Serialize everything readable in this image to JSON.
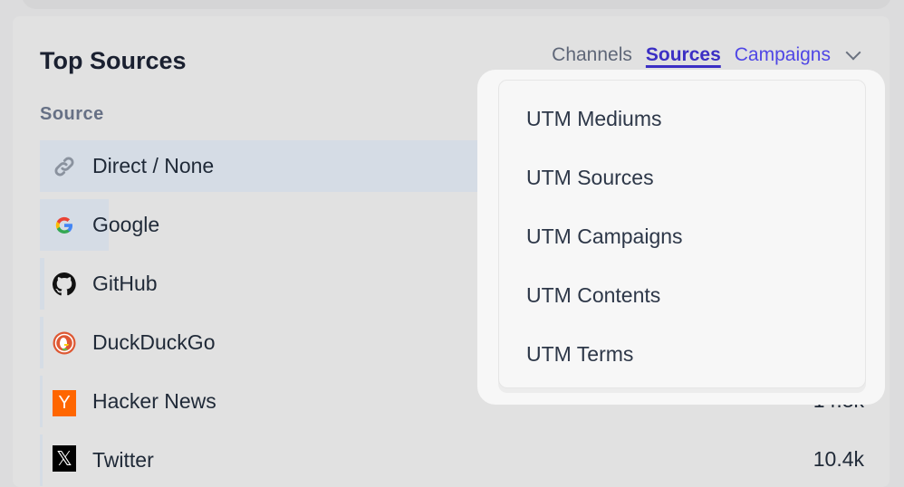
{
  "card": {
    "title": "Top Sources",
    "column_header": "Source"
  },
  "tabs": [
    {
      "label": "Channels",
      "active": false
    },
    {
      "label": "Sources",
      "active": true
    },
    {
      "label": "Campaigns",
      "active": false
    }
  ],
  "rows": [
    {
      "label": "Direct / None",
      "icon": "link-icon",
      "value": null
    },
    {
      "label": "Google",
      "icon": "google-icon",
      "value": null
    },
    {
      "label": "GitHub",
      "icon": "github-icon",
      "value": null
    },
    {
      "label": "DuckDuckGo",
      "icon": "duckduckgo-icon",
      "value": null
    },
    {
      "label": "Hacker News",
      "icon": "hacker-news-icon",
      "value": "14.3k"
    },
    {
      "label": "Twitter",
      "icon": "x-twitter-icon",
      "value": "10.4k"
    }
  ],
  "dropdown": {
    "items": [
      "UTM Mediums",
      "UTM Sources",
      "UTM Campaigns",
      "UTM Contents",
      "UTM Terms"
    ]
  },
  "colors": {
    "accent": "#4f46e5",
    "active_tab": "#3b2fc4",
    "bar": "#d5dce5"
  }
}
